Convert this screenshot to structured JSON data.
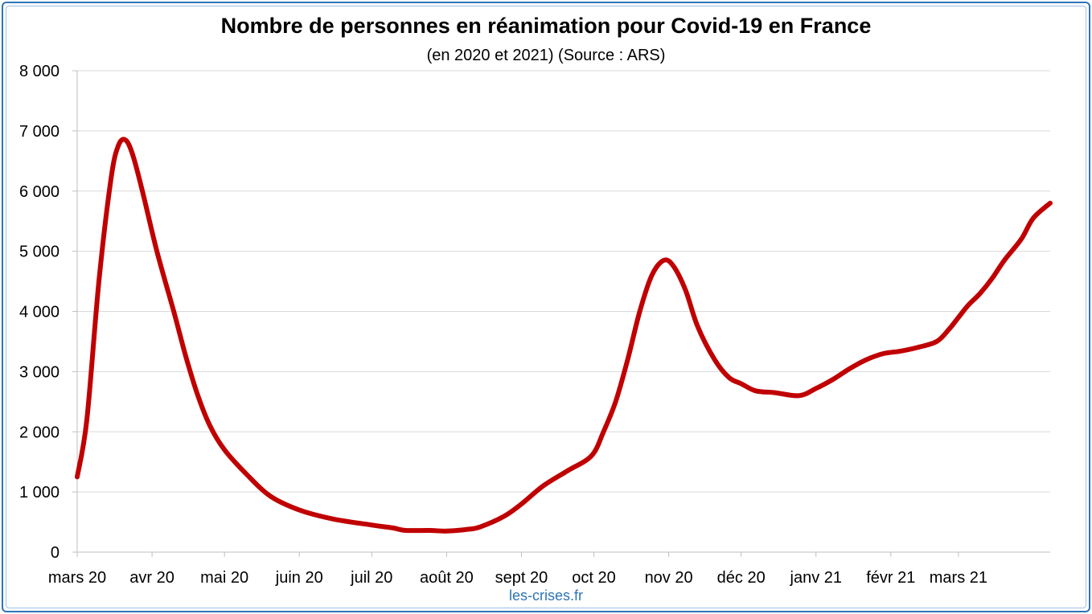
{
  "chart_data": {
    "type": "line",
    "title": "Nombre de personnes en réanimation pour Covid-19 en France",
    "subtitle": "(en 2020 et 2021) (Source : ARS)",
    "xlabel": "",
    "ylabel": "",
    "ylim": [
      0,
      8000
    ],
    "yticks": [
      0,
      1000,
      2000,
      3000,
      4000,
      5000,
      6000,
      7000,
      8000
    ],
    "ytick_labels": [
      "0",
      "1 000",
      "2 000",
      "3 000",
      "4 000",
      "5 000",
      "6 000",
      "7 000",
      "8 000"
    ],
    "xlim": [
      "2020-03-01",
      "2021-04-08"
    ],
    "xticks": [
      "2020-03-01",
      "2020-04-01",
      "2020-05-01",
      "2020-06-01",
      "2020-07-01",
      "2020-08-01",
      "2020-09-01",
      "2020-10-01",
      "2020-11-01",
      "2020-12-01",
      "2021-01-01",
      "2021-02-01",
      "2021-03-01"
    ],
    "xtick_labels": [
      "mars 20",
      "avr 20",
      "mai 20",
      "juin 20",
      "juil 20",
      "août 20",
      "sept 20",
      "oct 20",
      "nov 20",
      "déc 20",
      "janv 21",
      "févr 21",
      "mars 21"
    ],
    "grid": true,
    "color": "#c00000",
    "series": [
      {
        "points": [
          [
            "2020-03-01",
            1250
          ],
          [
            "2020-03-05",
            2200
          ],
          [
            "2020-03-10",
            4500
          ],
          [
            "2020-03-15",
            6200
          ],
          [
            "2020-03-18",
            6750
          ],
          [
            "2020-03-21",
            6850
          ],
          [
            "2020-03-24",
            6600
          ],
          [
            "2020-03-28",
            6000
          ],
          [
            "2020-04-03",
            5000
          ],
          [
            "2020-04-10",
            4000
          ],
          [
            "2020-04-15",
            3250
          ],
          [
            "2020-04-20",
            2600
          ],
          [
            "2020-04-25",
            2100
          ],
          [
            "2020-05-01",
            1700
          ],
          [
            "2020-05-10",
            1300
          ],
          [
            "2020-05-20",
            930
          ],
          [
            "2020-06-01",
            700
          ],
          [
            "2020-06-15",
            550
          ],
          [
            "2020-07-01",
            450
          ],
          [
            "2020-07-10",
            400
          ],
          [
            "2020-07-15",
            360
          ],
          [
            "2020-07-25",
            360
          ],
          [
            "2020-08-01",
            350
          ],
          [
            "2020-08-10",
            380
          ],
          [
            "2020-08-15",
            420
          ],
          [
            "2020-08-25",
            600
          ],
          [
            "2020-09-01",
            800
          ],
          [
            "2020-09-10",
            1100
          ],
          [
            "2020-09-20",
            1350
          ],
          [
            "2020-09-30",
            1600
          ],
          [
            "2020-10-05",
            2000
          ],
          [
            "2020-10-10",
            2500
          ],
          [
            "2020-10-15",
            3200
          ],
          [
            "2020-10-20",
            4000
          ],
          [
            "2020-10-25",
            4600
          ],
          [
            "2020-10-30",
            4850
          ],
          [
            "2020-11-03",
            4750
          ],
          [
            "2020-11-08",
            4350
          ],
          [
            "2020-11-13",
            3750
          ],
          [
            "2020-11-20",
            3200
          ],
          [
            "2020-11-26",
            2900
          ],
          [
            "2020-12-01",
            2800
          ],
          [
            "2020-12-07",
            2680
          ],
          [
            "2020-12-15",
            2650
          ],
          [
            "2020-12-25",
            2600
          ],
          [
            "2021-01-01",
            2720
          ],
          [
            "2021-01-08",
            2870
          ],
          [
            "2021-01-15",
            3050
          ],
          [
            "2021-01-22",
            3200
          ],
          [
            "2021-01-29",
            3300
          ],
          [
            "2021-02-05",
            3340
          ],
          [
            "2021-02-12",
            3400
          ],
          [
            "2021-02-20",
            3500
          ],
          [
            "2021-02-25",
            3700
          ],
          [
            "2021-03-01",
            3900
          ],
          [
            "2021-03-05",
            4100
          ],
          [
            "2021-03-10",
            4300
          ],
          [
            "2021-03-15",
            4550
          ],
          [
            "2021-03-20",
            4850
          ],
          [
            "2021-03-27",
            5200
          ],
          [
            "2021-04-01",
            5550
          ],
          [
            "2021-04-08",
            5800
          ]
        ]
      }
    ]
  },
  "source_label": "les-crises.fr"
}
